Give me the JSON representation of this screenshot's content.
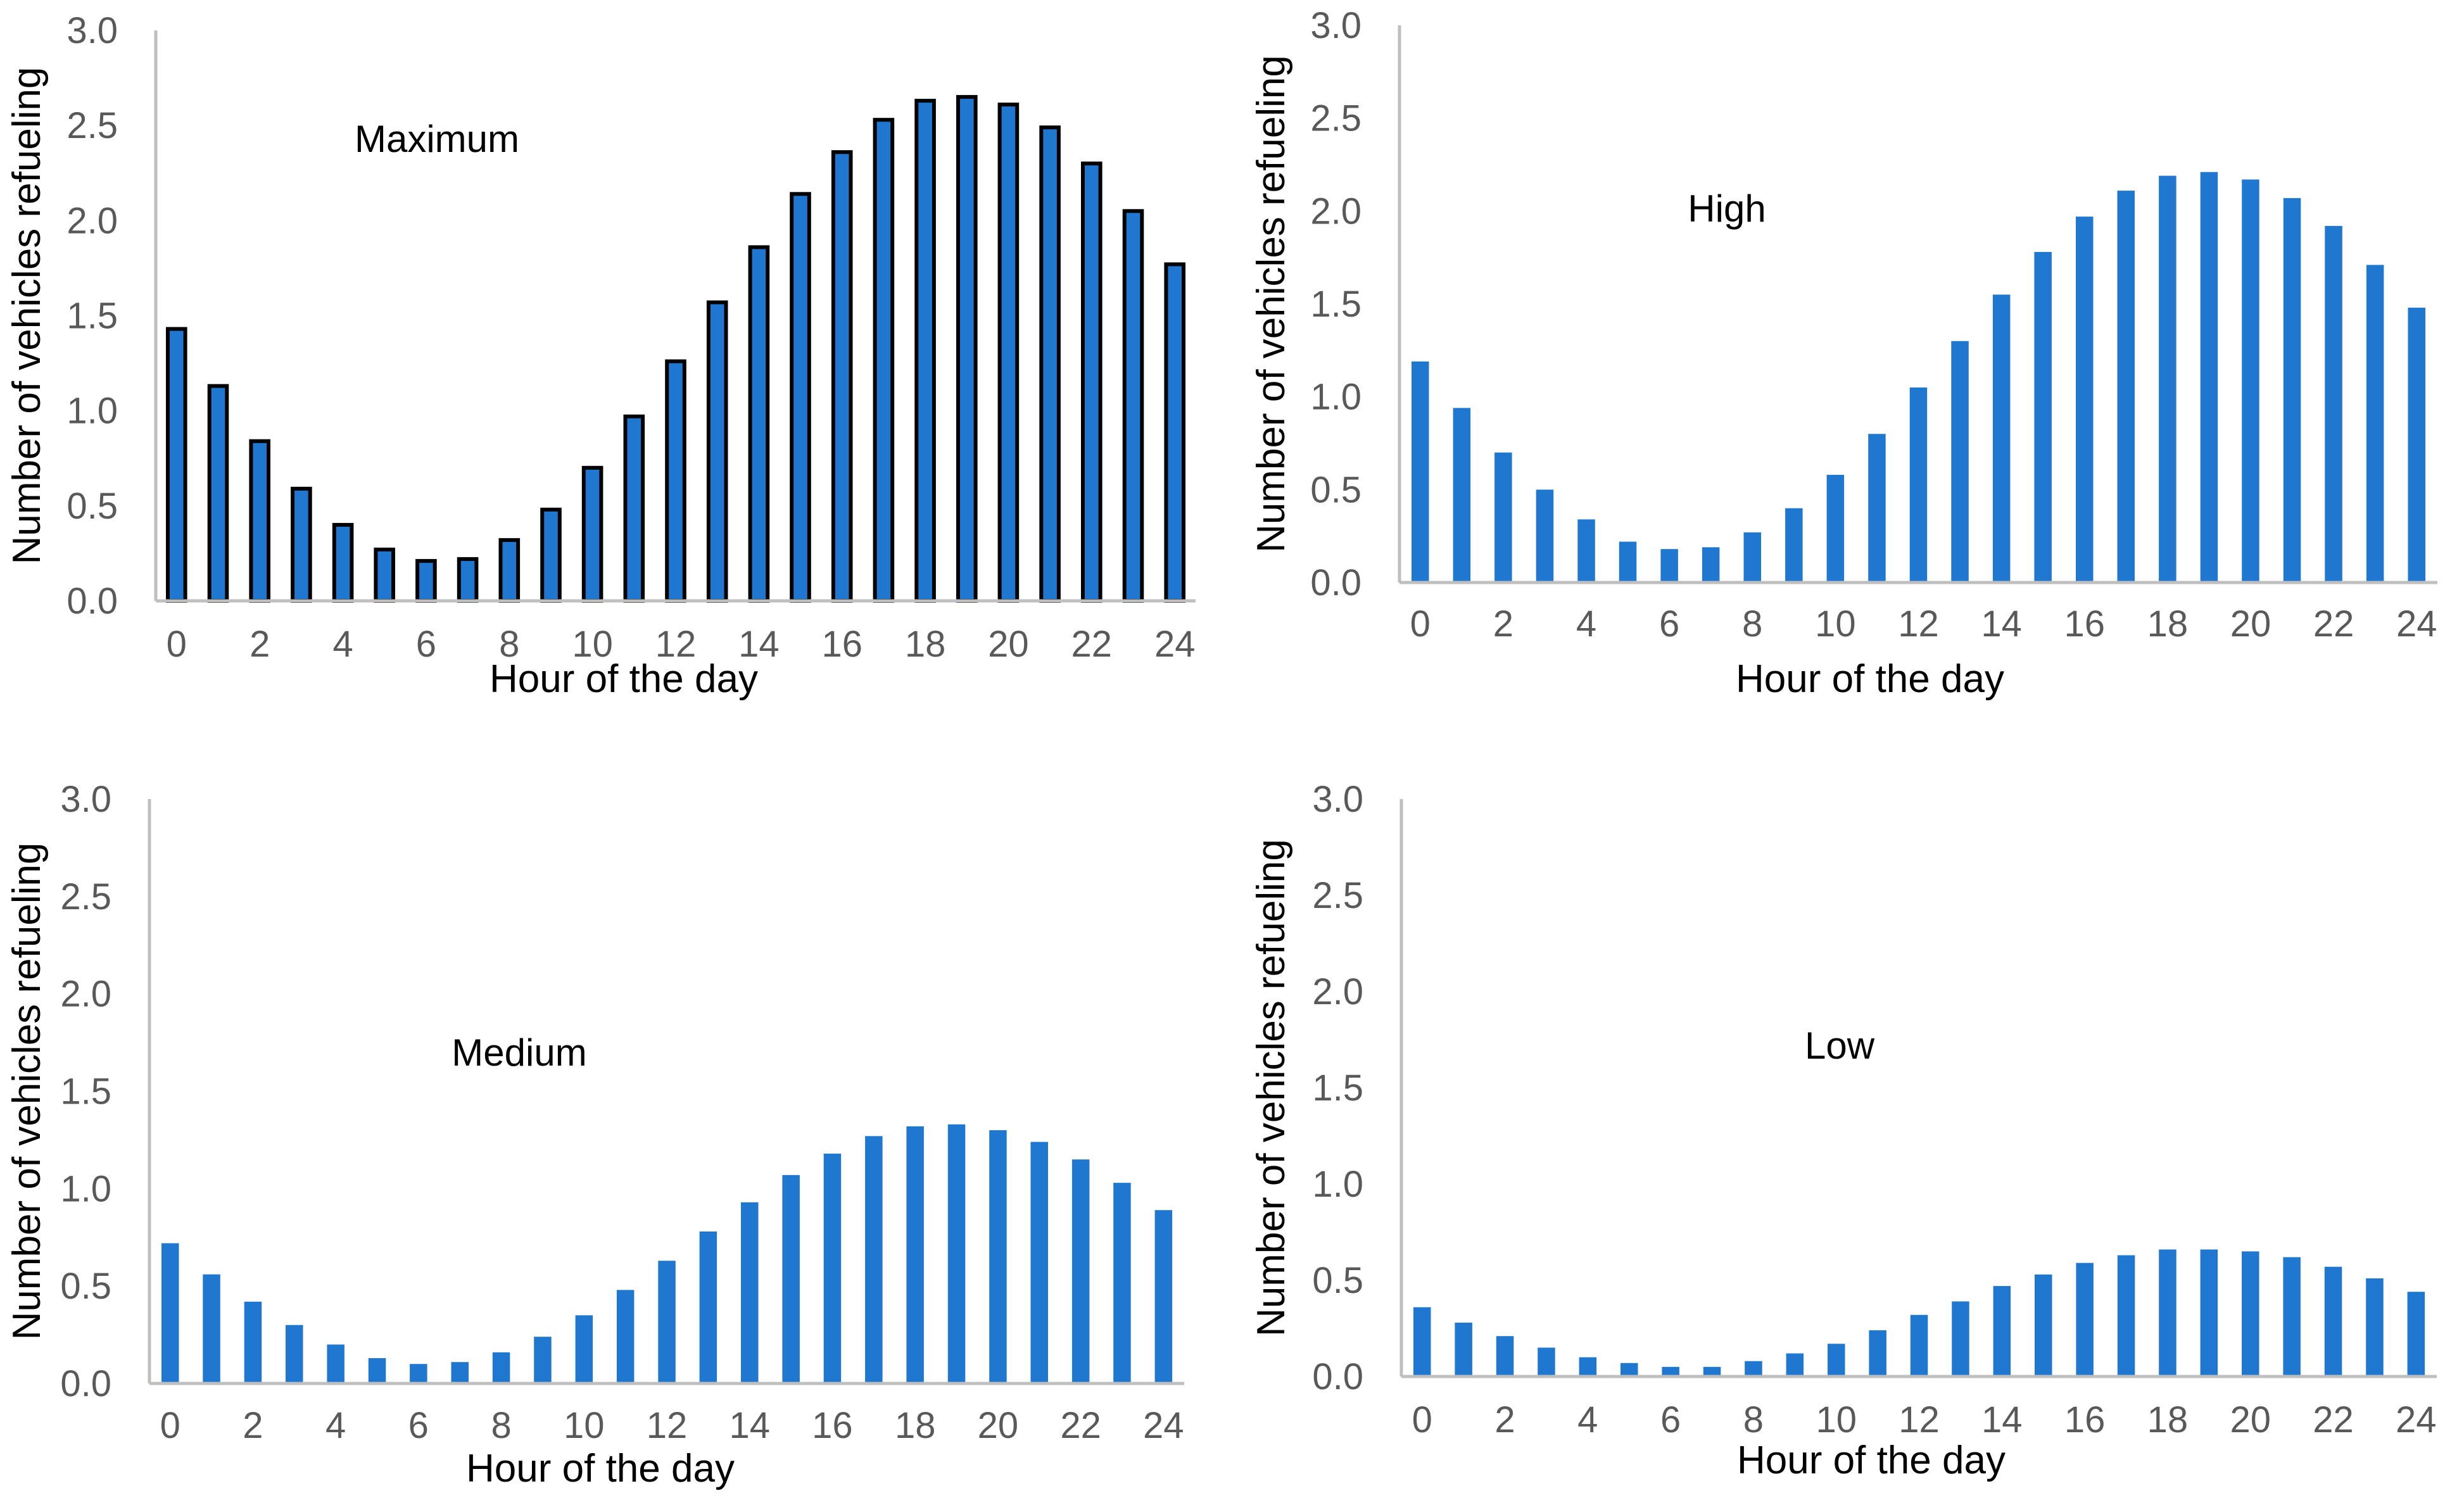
{
  "figure": {
    "colors": {
      "bar_fill": "#1F77D0",
      "bar_outline_first_panel": "#000000",
      "axis_line": "#BFBFBF",
      "tick_text": "#595959",
      "title_text": "#000000"
    }
  },
  "chart_data": [
    {
      "type": "bar",
      "annotation": "Maximum",
      "xlabel": "Hour of the day",
      "ylabel": "Number of vehicles refueling",
      "xlim": [
        0,
        24
      ],
      "ylim": [
        0,
        3.0
      ],
      "xticks": [
        "0",
        "2",
        "4",
        "6",
        "8",
        "10",
        "12",
        "14",
        "16",
        "18",
        "20",
        "22",
        "24"
      ],
      "yticks": [
        "0.0",
        "0.5",
        "1.0",
        "1.5",
        "2.0",
        "2.5",
        "3.0"
      ],
      "categories": [
        0,
        1,
        2,
        3,
        4,
        5,
        6,
        7,
        8,
        9,
        10,
        11,
        12,
        13,
        14,
        15,
        16,
        17,
        18,
        19,
        20,
        21,
        22,
        23,
        24
      ],
      "values": [
        1.43,
        1.13,
        0.84,
        0.59,
        0.4,
        0.27,
        0.21,
        0.22,
        0.32,
        0.48,
        0.7,
        0.97,
        1.26,
        1.57,
        1.86,
        2.14,
        2.36,
        2.53,
        2.63,
        2.65,
        2.61,
        2.49,
        2.3,
        2.05,
        1.77
      ],
      "outlined": true
    },
    {
      "type": "bar",
      "annotation": "High",
      "xlabel": "Hour of the day",
      "ylabel": "Number of vehicles refueling",
      "xlim": [
        0,
        24
      ],
      "ylim": [
        0,
        3.0
      ],
      "xticks": [
        "0",
        "2",
        "4",
        "6",
        "8",
        "10",
        "12",
        "14",
        "16",
        "18",
        "20",
        "22",
        "24"
      ],
      "yticks": [
        "0.0",
        "0.5",
        "1.0",
        "1.5",
        "2.0",
        "2.5",
        "3.0"
      ],
      "categories": [
        0,
        1,
        2,
        3,
        4,
        5,
        6,
        7,
        8,
        9,
        10,
        11,
        12,
        13,
        14,
        15,
        16,
        17,
        18,
        19,
        20,
        21,
        22,
        23,
        24
      ],
      "values": [
        1.19,
        0.94,
        0.7,
        0.5,
        0.34,
        0.22,
        0.18,
        0.19,
        0.27,
        0.4,
        0.58,
        0.8,
        1.05,
        1.3,
        1.55,
        1.78,
        1.97,
        2.11,
        2.19,
        2.21,
        2.17,
        2.07,
        1.92,
        1.71,
        1.48
      ],
      "outlined": false
    },
    {
      "type": "bar",
      "annotation": "Medium",
      "xlabel": "Hour of the day",
      "ylabel": "Number of vehicles refueling",
      "xlim": [
        0,
        24
      ],
      "ylim": [
        0,
        3.0
      ],
      "xticks": [
        "0",
        "2",
        "4",
        "6",
        "8",
        "10",
        "12",
        "14",
        "16",
        "18",
        "20",
        "22",
        "24"
      ],
      "yticks": [
        "0.0",
        "0.5",
        "1.0",
        "1.5",
        "2.0",
        "2.5",
        "3.0"
      ],
      "categories": [
        0,
        1,
        2,
        3,
        4,
        5,
        6,
        7,
        8,
        9,
        10,
        11,
        12,
        13,
        14,
        15,
        16,
        17,
        18,
        19,
        20,
        21,
        22,
        23,
        24
      ],
      "values": [
        0.72,
        0.56,
        0.42,
        0.3,
        0.2,
        0.13,
        0.1,
        0.11,
        0.16,
        0.24,
        0.35,
        0.48,
        0.63,
        0.78,
        0.93,
        1.07,
        1.18,
        1.27,
        1.32,
        1.33,
        1.3,
        1.24,
        1.15,
        1.03,
        0.89
      ],
      "outlined": false
    },
    {
      "type": "bar",
      "annotation": "Low",
      "xlabel": "Hour of the day",
      "ylabel": "Number of vehicles refueling",
      "xlim": [
        0,
        24
      ],
      "ylim": [
        0,
        3.0
      ],
      "xticks": [
        "0",
        "2",
        "4",
        "6",
        "8",
        "10",
        "12",
        "14",
        "16",
        "18",
        "20",
        "22",
        "24"
      ],
      "yticks": [
        "0.0",
        "0.5",
        "1.0",
        "1.5",
        "2.0",
        "2.5",
        "3.0"
      ],
      "categories": [
        0,
        1,
        2,
        3,
        4,
        5,
        6,
        7,
        8,
        9,
        10,
        11,
        12,
        13,
        14,
        15,
        16,
        17,
        18,
        19,
        20,
        21,
        22,
        23,
        24
      ],
      "values": [
        0.36,
        0.28,
        0.21,
        0.15,
        0.1,
        0.07,
        0.05,
        0.05,
        0.08,
        0.12,
        0.17,
        0.24,
        0.32,
        0.39,
        0.47,
        0.53,
        0.59,
        0.63,
        0.66,
        0.66,
        0.65,
        0.62,
        0.57,
        0.51,
        0.44
      ],
      "outlined": false
    }
  ]
}
